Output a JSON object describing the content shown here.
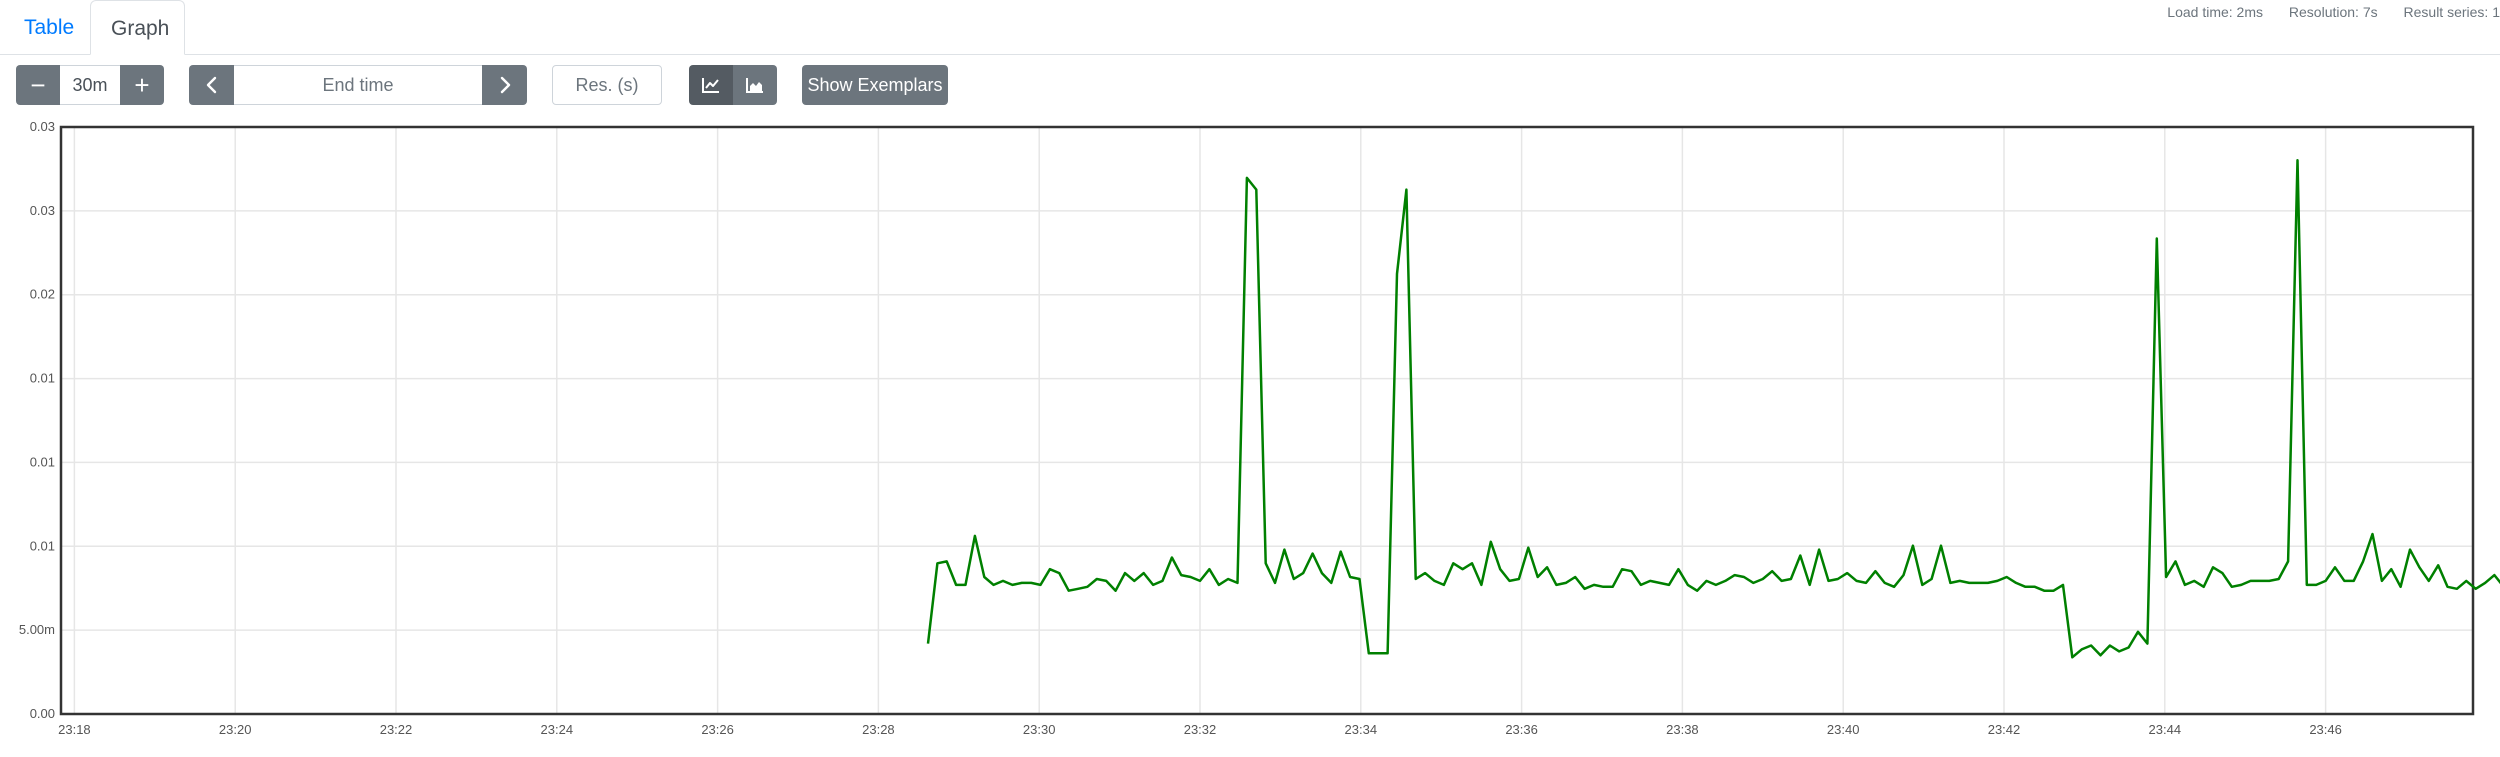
{
  "tabs": {
    "table": "Table",
    "graph": "Graph"
  },
  "status": {
    "load_time": "Load time: 2ms",
    "resolution": "Resolution: 7s",
    "result_series": "Result series: 1"
  },
  "toolbar": {
    "range_minus": "−",
    "range_value": "30m",
    "range_plus": "+",
    "end_time_placeholder": "End time",
    "resolution_placeholder": "Res. (s)",
    "show_exemplars": "Show Exemplars"
  },
  "colors": {
    "series": "#008000",
    "button": "#6c757d",
    "button_active": "#545b62",
    "link": "#007bff"
  },
  "icons": {
    "prev": "chevron-left-icon",
    "next": "chevron-right-icon",
    "line": "line-chart-icon",
    "stacked": "area-chart-icon"
  },
  "chart_data": {
    "type": "line",
    "grid": true,
    "ylim": [
      0,
      0.03
    ],
    "y_ticks": [
      "0.00",
      "5.00m",
      "0.01",
      "0.01",
      "0.01",
      "0.02",
      "0.03",
      "0.03"
    ],
    "x_ticks": [
      "23:18",
      "23:20",
      "23:22",
      "23:24",
      "23:26",
      "23:28",
      "23:30",
      "23:32",
      "23:34",
      "23:36",
      "23:38",
      "23:40",
      "23:42",
      "23:44",
      "23:46"
    ],
    "x_start": "23:17:50",
    "x_end": "23:47:50",
    "series": [
      {
        "t_start": "23:28:37",
        "step_seconds": 7,
        "values": [
          0.0036,
          0.0077,
          0.0078,
          0.0066,
          0.0066,
          0.0091,
          0.007,
          0.0066,
          0.0068,
          0.0066,
          0.0067,
          0.0067,
          0.0066,
          0.0074,
          0.0072,
          0.0063,
          0.0064,
          0.0065,
          0.0069,
          0.0068,
          0.0063,
          0.0072,
          0.0068,
          0.0072,
          0.0066,
          0.0068,
          0.008,
          0.0071,
          0.007,
          0.0068,
          0.0074,
          0.0066,
          0.0069,
          0.0067,
          0.0274,
          0.0268,
          0.0077,
          0.0067,
          0.0084,
          0.0069,
          0.0072,
          0.0082,
          0.0072,
          0.0067,
          0.0083,
          0.007,
          0.0069,
          0.0031,
          0.0031,
          0.0031,
          0.0225,
          0.0268,
          0.0069,
          0.0072,
          0.0068,
          0.0066,
          0.0077,
          0.0074,
          0.0077,
          0.0066,
          0.0088,
          0.0074,
          0.0068,
          0.0069,
          0.0085,
          0.007,
          0.0075,
          0.0066,
          0.0067,
          0.007,
          0.0064,
          0.0066,
          0.0065,
          0.0065,
          0.0074,
          0.0073,
          0.0066,
          0.0068,
          0.0067,
          0.0066,
          0.0074,
          0.0066,
          0.0063,
          0.0068,
          0.0066,
          0.0068,
          0.0071,
          0.007,
          0.0067,
          0.0069,
          0.0073,
          0.0068,
          0.0069,
          0.0081,
          0.0066,
          0.0084,
          0.0068,
          0.0069,
          0.0072,
          0.0068,
          0.0067,
          0.0073,
          0.0067,
          0.0065,
          0.0071,
          0.0086,
          0.0066,
          0.0069,
          0.0086,
          0.0067,
          0.0068,
          0.0067,
          0.0067,
          0.0067,
          0.0068,
          0.007,
          0.0067,
          0.0065,
          0.0065,
          0.0063,
          0.0063,
          0.0066,
          0.0029,
          0.0033,
          0.0035,
          0.003,
          0.0035,
          0.0032,
          0.0034,
          0.0042,
          0.0036,
          0.0243,
          0.007,
          0.0078,
          0.0066,
          0.0068,
          0.0065,
          0.0075,
          0.0072,
          0.0065,
          0.0066,
          0.0068,
          0.0068,
          0.0068,
          0.0069,
          0.0078,
          0.0283,
          0.0066,
          0.0066,
          0.0068,
          0.0075,
          0.0068,
          0.0068,
          0.0078,
          0.0092,
          0.0068,
          0.0074,
          0.0065,
          0.0084,
          0.0075,
          0.0068,
          0.0076,
          0.0065,
          0.0064,
          0.0068,
          0.0064,
          0.0067,
          0.0071,
          0.0065
        ]
      }
    ]
  }
}
